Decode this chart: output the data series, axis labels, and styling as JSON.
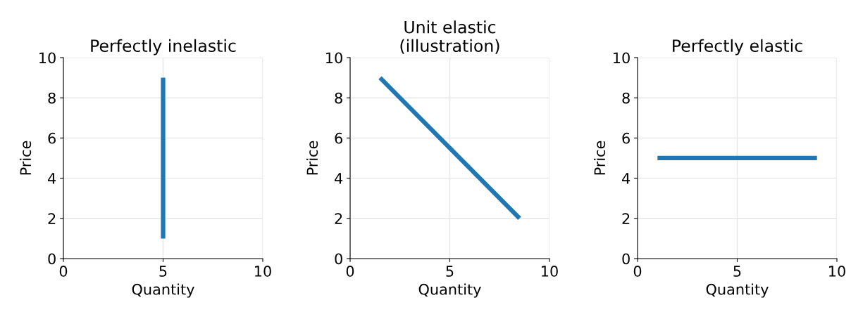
{
  "chart_data": [
    {
      "type": "line",
      "title": "Perfectly inelastic",
      "xlabel": "Quantity",
      "ylabel": "Price",
      "xlim": [
        0,
        10
      ],
      "ylim": [
        0,
        10
      ],
      "xticks": [
        0,
        5,
        10
      ],
      "yticks": [
        0,
        2,
        4,
        6,
        8,
        10
      ],
      "grid": true,
      "series": [
        {
          "color": "#1f77b4",
          "x": [
            5,
            5
          ],
          "values": [
            1,
            9
          ]
        }
      ]
    },
    {
      "type": "line",
      "title": "Unit elastic\n(illustration)",
      "xlabel": "Quantity",
      "ylabel": "Price",
      "xlim": [
        0,
        10
      ],
      "ylim": [
        0,
        10
      ],
      "xticks": [
        0,
        5,
        10
      ],
      "yticks": [
        0,
        2,
        4,
        6,
        8,
        10
      ],
      "grid": true,
      "series": [
        {
          "color": "#1f77b4",
          "x": [
            1.5,
            8.5
          ],
          "values": [
            9,
            2
          ]
        }
      ]
    },
    {
      "type": "line",
      "title": "Perfectly elastic",
      "xlabel": "Quantity",
      "ylabel": "Price",
      "xlim": [
        0,
        10
      ],
      "ylim": [
        0,
        10
      ],
      "xticks": [
        0,
        5,
        10
      ],
      "yticks": [
        0,
        2,
        4,
        6,
        8,
        10
      ],
      "grid": true,
      "series": [
        {
          "color": "#1f77b4",
          "x": [
            1,
            9
          ],
          "values": [
            5,
            5
          ]
        }
      ]
    }
  ]
}
